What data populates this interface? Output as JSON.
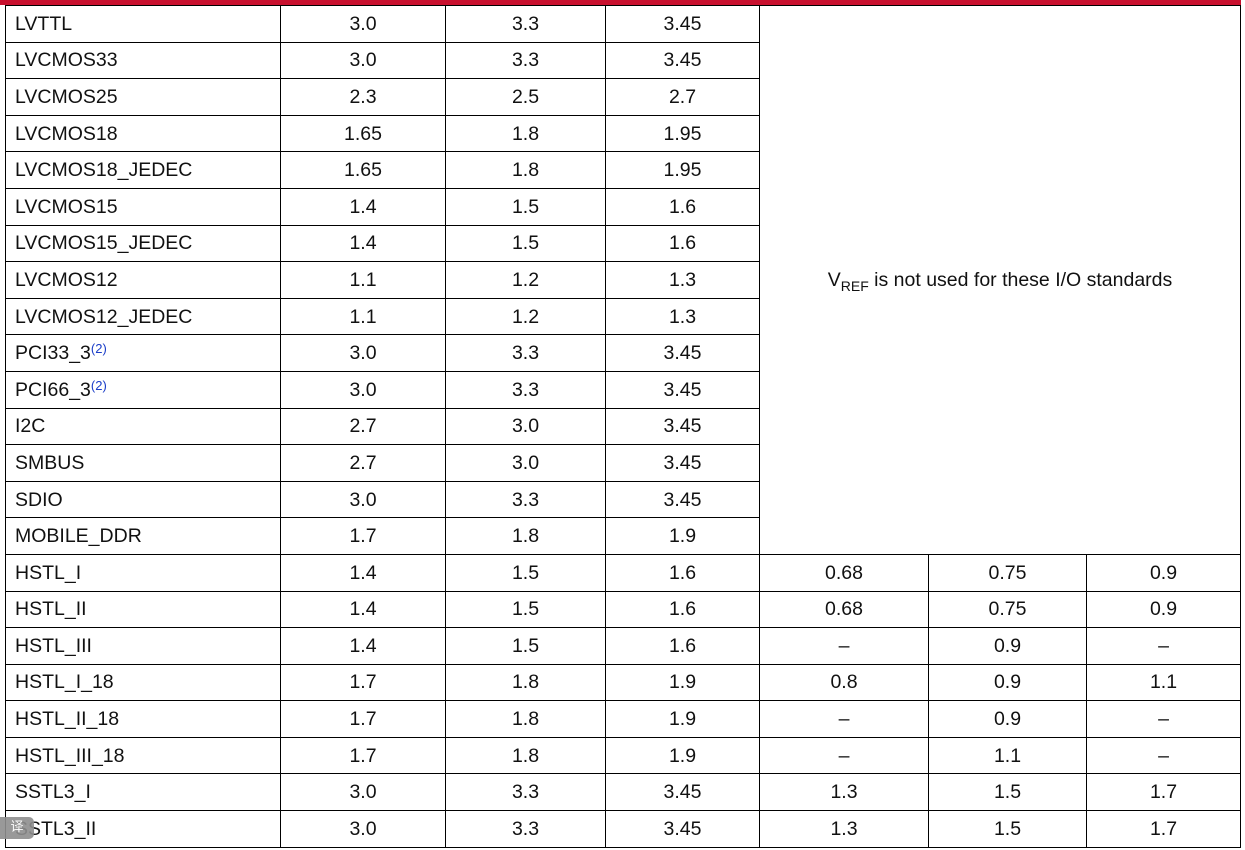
{
  "rows_upper": [
    {
      "name": "LVTTL",
      "sup": "",
      "vcco_min": "3.0",
      "vcco_nom": "3.3",
      "vcco_max": "3.45"
    },
    {
      "name": "LVCMOS33",
      "sup": "",
      "vcco_min": "3.0",
      "vcco_nom": "3.3",
      "vcco_max": "3.45"
    },
    {
      "name": "LVCMOS25",
      "sup": "",
      "vcco_min": "2.3",
      "vcco_nom": "2.5",
      "vcco_max": "2.7"
    },
    {
      "name": "LVCMOS18",
      "sup": "",
      "vcco_min": "1.65",
      "vcco_nom": "1.8",
      "vcco_max": "1.95"
    },
    {
      "name": "LVCMOS18_JEDEC",
      "sup": "",
      "vcco_min": "1.65",
      "vcco_nom": "1.8",
      "vcco_max": "1.95"
    },
    {
      "name": "LVCMOS15",
      "sup": "",
      "vcco_min": "1.4",
      "vcco_nom": "1.5",
      "vcco_max": "1.6"
    },
    {
      "name": "LVCMOS15_JEDEC",
      "sup": "",
      "vcco_min": "1.4",
      "vcco_nom": "1.5",
      "vcco_max": "1.6"
    },
    {
      "name": "LVCMOS12",
      "sup": "",
      "vcco_min": "1.1",
      "vcco_nom": "1.2",
      "vcco_max": "1.3"
    },
    {
      "name": "LVCMOS12_JEDEC",
      "sup": "",
      "vcco_min": "1.1",
      "vcco_nom": "1.2",
      "vcco_max": "1.3"
    },
    {
      "name": "PCI33_3",
      "sup": "(2)",
      "vcco_min": "3.0",
      "vcco_nom": "3.3",
      "vcco_max": "3.45"
    },
    {
      "name": "PCI66_3",
      "sup": "(2)",
      "vcco_min": "3.0",
      "vcco_nom": "3.3",
      "vcco_max": "3.45"
    },
    {
      "name": "I2C",
      "sup": "",
      "vcco_min": "2.7",
      "vcco_nom": "3.0",
      "vcco_max": "3.45"
    },
    {
      "name": "SMBUS",
      "sup": "",
      "vcco_min": "2.7",
      "vcco_nom": "3.0",
      "vcco_max": "3.45"
    },
    {
      "name": "SDIO",
      "sup": "",
      "vcco_min": "3.0",
      "vcco_nom": "3.3",
      "vcco_max": "3.45"
    },
    {
      "name": "MOBILE_DDR",
      "sup": "",
      "vcco_min": "1.7",
      "vcco_nom": "1.8",
      "vcco_max": "1.9"
    }
  ],
  "vref_note": {
    "v": "V",
    "sub": "REF",
    "text": " is not used for these I/O standards"
  },
  "rows_lower": [
    {
      "name": "HSTL_I",
      "vcco_min": "1.4",
      "vcco_nom": "1.5",
      "vcco_max": "1.6",
      "vref_min": "0.68",
      "vref_nom": "0.75",
      "vref_max": "0.9"
    },
    {
      "name": "HSTL_II",
      "vcco_min": "1.4",
      "vcco_nom": "1.5",
      "vcco_max": "1.6",
      "vref_min": "0.68",
      "vref_nom": "0.75",
      "vref_max": "0.9"
    },
    {
      "name": "HSTL_III",
      "vcco_min": "1.4",
      "vcco_nom": "1.5",
      "vcco_max": "1.6",
      "vref_min": "–",
      "vref_nom": "0.9",
      "vref_max": "–"
    },
    {
      "name": "HSTL_I_18",
      "vcco_min": "1.7",
      "vcco_nom": "1.8",
      "vcco_max": "1.9",
      "vref_min": "0.8",
      "vref_nom": "0.9",
      "vref_max": "1.1"
    },
    {
      "name": "HSTL_II_18",
      "vcco_min": "1.7",
      "vcco_nom": "1.8",
      "vcco_max": "1.9",
      "vref_min": "–",
      "vref_nom": "0.9",
      "vref_max": "–"
    },
    {
      "name": "HSTL_III_18",
      "vcco_min": "1.7",
      "vcco_nom": "1.8",
      "vcco_max": "1.9",
      "vref_min": "–",
      "vref_nom": "1.1",
      "vref_max": "–"
    },
    {
      "name": "SSTL3_I",
      "vcco_min": "3.0",
      "vcco_nom": "3.3",
      "vcco_max": "3.45",
      "vref_min": "1.3",
      "vref_nom": "1.5",
      "vref_max": "1.7"
    },
    {
      "name": "SSTL3_II",
      "vcco_min": "3.0",
      "vcco_nom": "3.3",
      "vcco_max": "3.45",
      "vref_min": "1.3",
      "vref_nom": "1.5",
      "vref_max": "1.7"
    }
  ],
  "colors": {
    "accent_bar": "#c8102e",
    "footnote_link": "#1a3dc8"
  },
  "overlay": {
    "icon": "translate-icon",
    "label": "译"
  }
}
